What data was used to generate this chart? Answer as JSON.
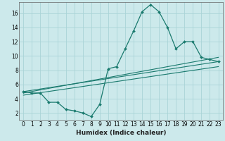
{
  "xlabel": "Humidex (Indice chaleur)",
  "ylabel": "",
  "bg_color": "#cce9eb",
  "line_color": "#1a7a6e",
  "grid_color": "#aad4d7",
  "xlim": [
    -0.5,
    23.5
  ],
  "ylim": [
    1.0,
    17.5
  ],
  "xticks": [
    0,
    1,
    2,
    3,
    4,
    5,
    6,
    7,
    8,
    9,
    10,
    11,
    12,
    13,
    14,
    15,
    16,
    17,
    18,
    19,
    20,
    21,
    22,
    23
  ],
  "yticks": [
    2,
    4,
    6,
    8,
    10,
    12,
    14,
    16
  ],
  "series_main": {
    "x": [
      0,
      1,
      2,
      3,
      4,
      5,
      6,
      7,
      8,
      9,
      10,
      11,
      12,
      13,
      14,
      15,
      16,
      17,
      18,
      19,
      20,
      21,
      22,
      23
    ],
    "y": [
      5.0,
      4.8,
      4.8,
      3.5,
      3.5,
      2.5,
      2.3,
      2.0,
      1.5,
      3.2,
      8.2,
      8.5,
      11.0,
      13.5,
      16.2,
      17.2,
      16.2,
      14.0,
      11.0,
      12.0,
      12.0,
      9.8,
      9.5,
      9.2
    ]
  },
  "lines": [
    {
      "x": [
        0,
        23
      ],
      "y": [
        5.0,
        9.2
      ]
    },
    {
      "x": [
        0,
        23
      ],
      "y": [
        4.8,
        9.8
      ]
    },
    {
      "x": [
        0,
        23
      ],
      "y": [
        4.5,
        8.5
      ]
    }
  ],
  "xlabel_fontsize": 6.5,
  "tick_fontsize": 5.5
}
